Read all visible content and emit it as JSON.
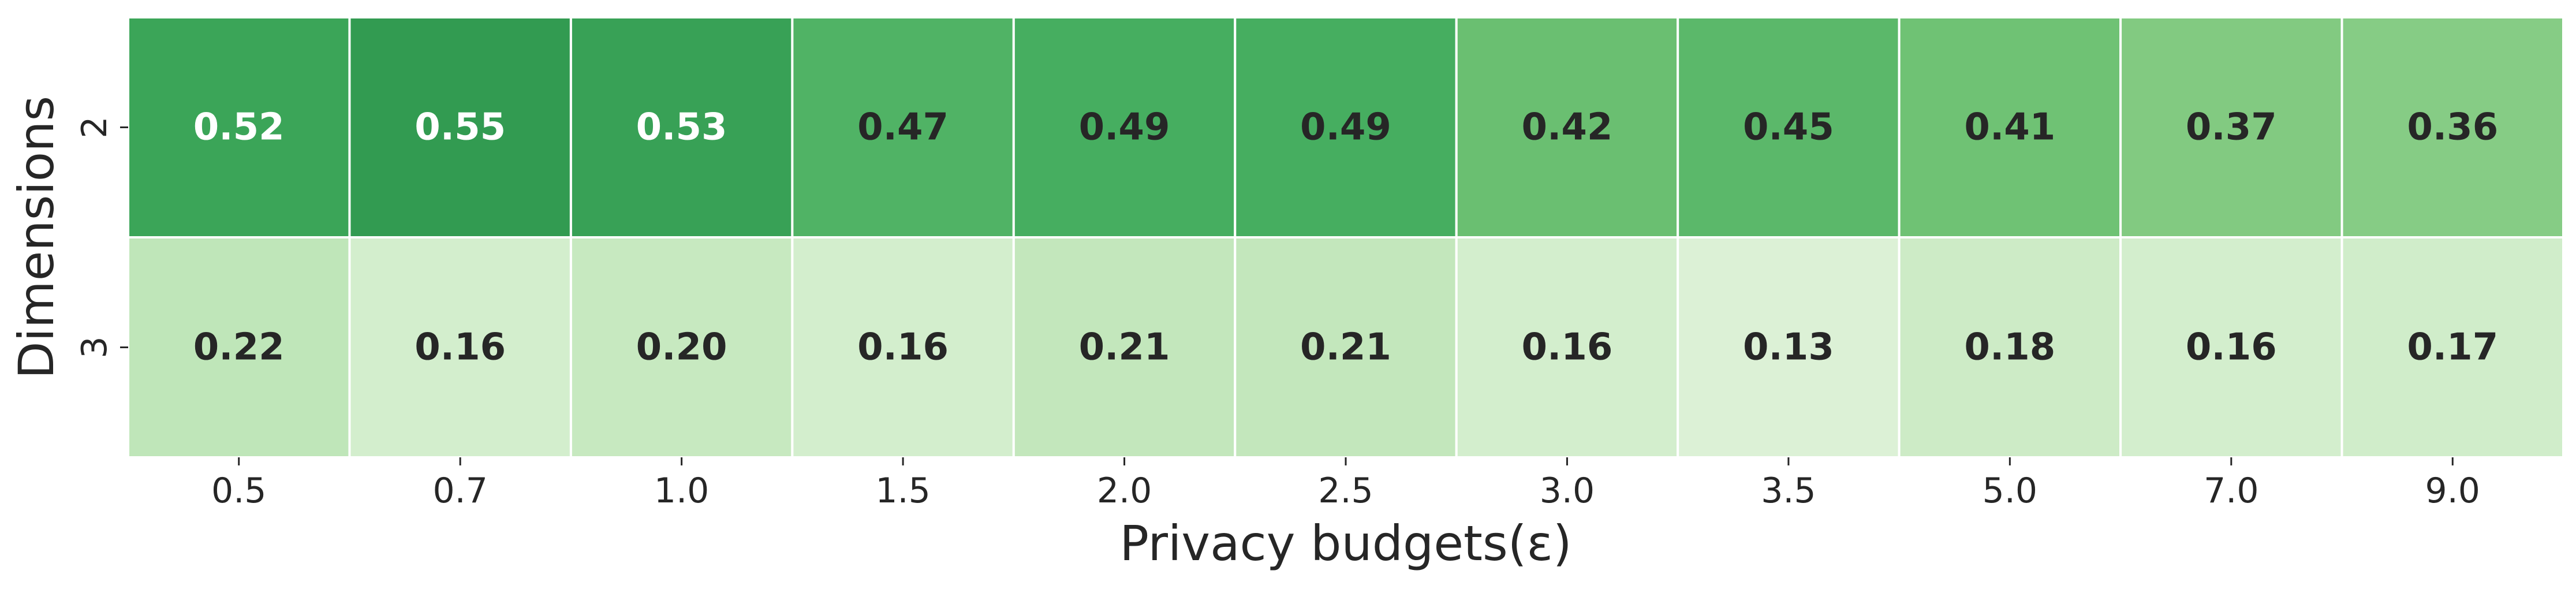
{
  "chart_data": {
    "type": "heatmap",
    "xlabel": "Privacy budgets(ε)",
    "ylabel": "Dimensions",
    "x_categories": [
      "0.5",
      "0.7",
      "1.0",
      "1.5",
      "2.0",
      "2.5",
      "3.0",
      "3.5",
      "5.0",
      "7.0",
      "9.0"
    ],
    "y_categories": [
      "2",
      "3"
    ],
    "values": [
      [
        0.52,
        0.55,
        0.53,
        0.47,
        0.49,
        0.49,
        0.42,
        0.45,
        0.41,
        0.37,
        0.36
      ],
      [
        0.22,
        0.16,
        0.2,
        0.16,
        0.21,
        0.21,
        0.16,
        0.13,
        0.18,
        0.16,
        0.17
      ]
    ],
    "value_labels": [
      [
        "0.52",
        "0.55",
        "0.53",
        "0.47",
        "0.49",
        "0.49",
        "0.42",
        "0.45",
        "0.41",
        "0.37",
        "0.36"
      ],
      [
        "0.22",
        "0.16",
        "0.20",
        "0.16",
        "0.21",
        "0.21",
        "0.16",
        "0.13",
        "0.18",
        "0.16",
        "0.17"
      ]
    ],
    "colormap": "Greens",
    "colors": {
      "low": "#f7fcf5",
      "mid": "#74c476",
      "high": "#00441b",
      "cell_border": "#ffffff",
      "text_dark": "#262626",
      "text_light": "#ffffff"
    },
    "color_range": [
      0.0,
      0.8
    ],
    "colorbar": false
  }
}
